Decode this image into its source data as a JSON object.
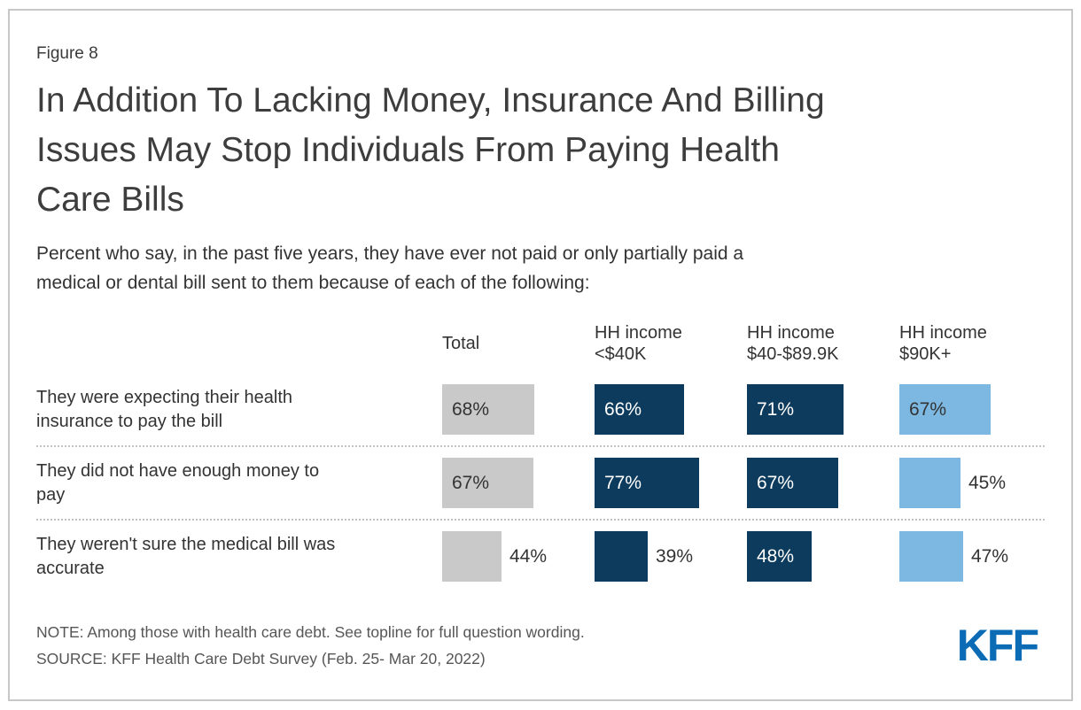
{
  "figure_label": "Figure 8",
  "title_lines": [
    "In Addition To Lacking Money, Insurance And Billing",
    "Issues May Stop Individuals From Paying Health",
    "Care Bills"
  ],
  "subtitle_lines": [
    "Percent who say, in the past five years, they have ever not paid or only partially paid a",
    "medical or dental bill sent to them because of each of the following:"
  ],
  "table": {
    "headers": [
      "Total",
      "HH income <$40K",
      "HH income $40-$89.9K",
      "HH income $90K+"
    ],
    "rows": [
      {
        "label_lines": [
          "They were expecting their health",
          "insurance to pay the bill"
        ],
        "cells": [
          {
            "value": 68,
            "display": "68%",
            "color": "#c9c9c9",
            "label_position": "inside"
          },
          {
            "value": 66,
            "display": "66%",
            "color": "#0c3b5d",
            "label_position": "inside"
          },
          {
            "value": 71,
            "display": "71%",
            "color": "#0c3b5d",
            "label_position": "inside"
          },
          {
            "value": 67,
            "display": "67%",
            "color": "#7cb8e1",
            "label_position": "inside"
          }
        ]
      },
      {
        "label_lines": [
          "They did not have enough money to",
          "pay"
        ],
        "cells": [
          {
            "value": 67,
            "display": "67%",
            "color": "#c9c9c9",
            "label_position": "inside"
          },
          {
            "value": 77,
            "display": "77%",
            "color": "#0c3b5d",
            "label_position": "inside"
          },
          {
            "value": 67,
            "display": "67%",
            "color": "#0c3b5d",
            "label_position": "inside"
          },
          {
            "value": 45,
            "display": "45%",
            "color": "#7cb8e1",
            "label_position": "outside"
          }
        ]
      },
      {
        "label_lines": [
          "They weren't sure the medical bill was",
          "accurate"
        ],
        "cells": [
          {
            "value": 44,
            "display": "44%",
            "color": "#c9c9c9",
            "label_position": "outside"
          },
          {
            "value": 39,
            "display": "39%",
            "color": "#0c3b5d",
            "label_position": "outside"
          },
          {
            "value": 48,
            "display": "48%",
            "color": "#0c3b5d",
            "label_position": "inside"
          },
          {
            "value": 47,
            "display": "47%",
            "color": "#7cb8e1",
            "label_position": "outside"
          }
        ]
      }
    ]
  },
  "chart_data": {
    "type": "bar",
    "orientation": "horizontal",
    "title": "In Addition To Lacking Money, Insurance And Billing Issues May Stop Individuals From Paying Health Care Bills",
    "subtitle": "Percent who say, in the past five years, they have ever not paid or only partially paid a medical or dental bill sent to them because of each of the following:",
    "categories": [
      "They were expecting their health insurance to pay the bill",
      "They did not have enough money to pay",
      "They weren't sure the medical bill was accurate"
    ],
    "series": [
      {
        "name": "Total",
        "values": [
          68,
          67,
          44
        ],
        "color": "#c9c9c9"
      },
      {
        "name": "HH income <$40K",
        "values": [
          66,
          77,
          39
        ],
        "color": "#0c3b5d"
      },
      {
        "name": "HH income $40-$89.9K",
        "values": [
          71,
          67,
          48
        ],
        "color": "#0c3b5d"
      },
      {
        "name": "HH income $90K+",
        "values": [
          67,
          45,
          47
        ],
        "color": "#7cb8e1"
      }
    ],
    "value_suffix": "%",
    "xlim": [
      0,
      100
    ],
    "grid": false,
    "legend_position": "column-headers"
  },
  "footer": {
    "note": "NOTE: Among those with health care debt. See topline for full question wording.",
    "source": "SOURCE: KFF Health Care Debt Survey (Feb. 25- Mar 20, 2022)",
    "logo_text": "KFF"
  },
  "colors": {
    "navy": "#0c3b5d",
    "light_blue": "#7cb8e1",
    "bar_gray": "#c9c9c9",
    "kff_blue": "#0b6cb5",
    "card_border": "#c7c7c7"
  }
}
